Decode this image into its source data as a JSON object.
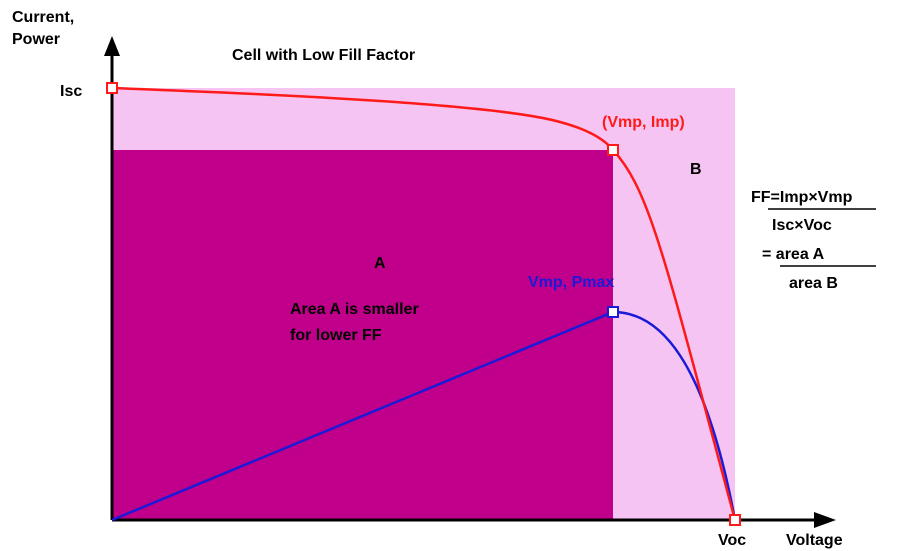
{
  "title": "Cell with Low Fill Factor",
  "axes": {
    "y_label": [
      "Current,",
      "Power"
    ],
    "x_label": "Voltage"
  },
  "points": {
    "isc": "Isc",
    "voc": "Voc",
    "max_current": "(Vmp, Imp)",
    "max_power": "Vmp, Pmax"
  },
  "regions": {
    "a": "A",
    "b": "B",
    "note": [
      "Area A is smaller",
      "for lower FF"
    ]
  },
  "formula": {
    "numerator": "FF=Imp×Vmp",
    "denominator": "Isc×Voc",
    "ratio_top": "= area A",
    "ratio_bottom": "area B"
  }
}
